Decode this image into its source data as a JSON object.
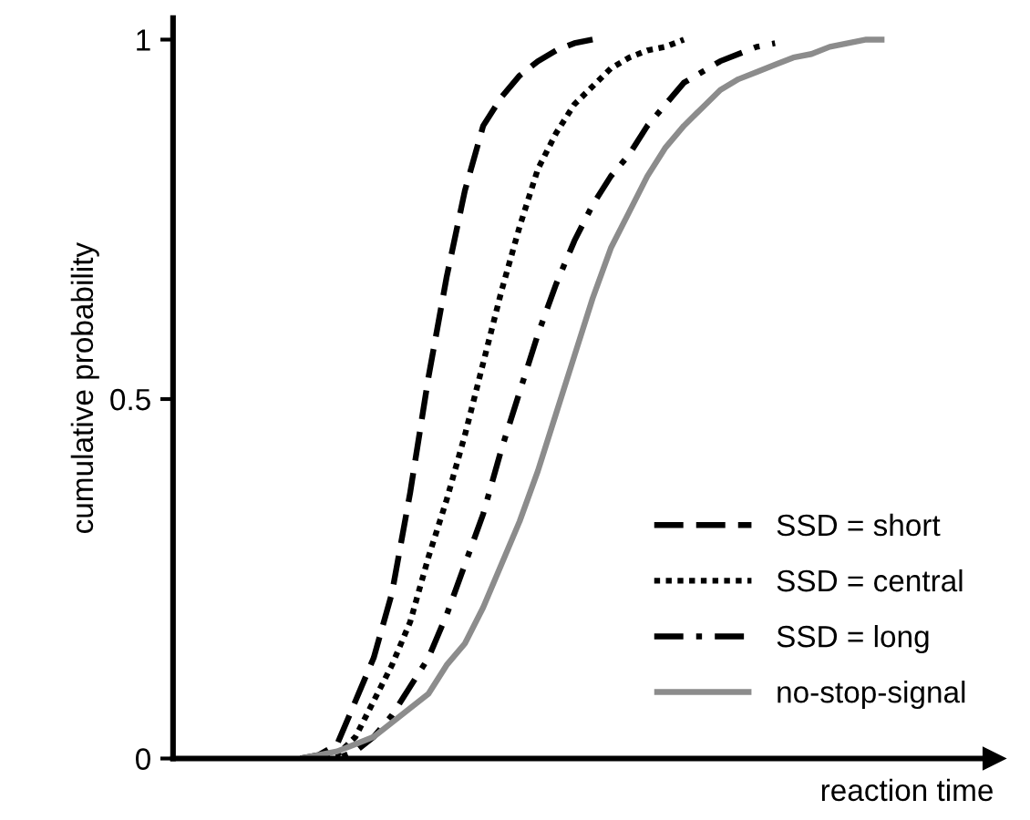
{
  "chart_data": {
    "type": "line",
    "xlabel": "reaction time",
    "ylabel": "cumulative probability",
    "categories": [
      null,
      null,
      null,
      null,
      null,
      null,
      null,
      null,
      null,
      null,
      null,
      null,
      null,
      null,
      null,
      null,
      null,
      null,
      null,
      null,
      null,
      null,
      null,
      null,
      null,
      null,
      null,
      null,
      null,
      null,
      null,
      null,
      null
    ],
    "series": [
      {
        "name": "SSD = short",
        "color": "#000000",
        "line_style": "dashed",
        "values": [
          0,
          0.005,
          0.02,
          0.08,
          0.14,
          0.23,
          0.37,
          0.53,
          0.67,
          0.79,
          0.88,
          0.92,
          0.95,
          0.97,
          0.985,
          0.995,
          1.0,
          null,
          null,
          null,
          null,
          null,
          null,
          null,
          null,
          null,
          null,
          null,
          null,
          null,
          null,
          null,
          null
        ]
      },
      {
        "name": "SSD = central",
        "color": "#000000",
        "line_style": "dotted",
        "values": [
          0,
          0,
          0.005,
          0.03,
          0.08,
          0.13,
          0.19,
          0.28,
          0.36,
          0.45,
          0.55,
          0.65,
          0.74,
          0.82,
          0.87,
          0.91,
          0.935,
          0.96,
          0.975,
          0.985,
          0.99,
          1.0,
          null,
          null,
          null,
          null,
          null,
          null,
          null,
          null,
          null,
          null,
          null
        ]
      },
      {
        "name": "SSD = long",
        "color": "#000000",
        "line_style": "dashdot",
        "values": [
          0,
          0,
          0,
          0.01,
          0.03,
          0.06,
          0.1,
          0.14,
          0.2,
          0.27,
          0.34,
          0.43,
          0.51,
          0.59,
          0.66,
          0.72,
          0.77,
          0.81,
          0.84,
          0.88,
          0.91,
          0.94,
          0.955,
          0.97,
          0.98,
          0.99,
          0.995,
          null,
          null,
          null,
          null,
          null,
          null
        ]
      },
      {
        "name": "no-stop-signal",
        "color": "#8c8c8c",
        "line_style": "solid",
        "values": [
          0,
          0.005,
          0.01,
          0.02,
          0.03,
          0.05,
          0.07,
          0.09,
          0.13,
          0.16,
          0.21,
          0.27,
          0.33,
          0.4,
          0.48,
          0.56,
          0.64,
          0.71,
          0.76,
          0.81,
          0.85,
          0.88,
          0.905,
          0.93,
          0.945,
          0.955,
          0.965,
          0.975,
          0.98,
          0.99,
          0.995,
          1.0,
          1.0
        ]
      }
    ],
    "ylim": [
      0,
      1.03
    ],
    "yticks": [
      0,
      0.5,
      1
    ],
    "tick_labels": "y",
    "grid": false,
    "legend": "bottom right",
    "marker": "none"
  }
}
